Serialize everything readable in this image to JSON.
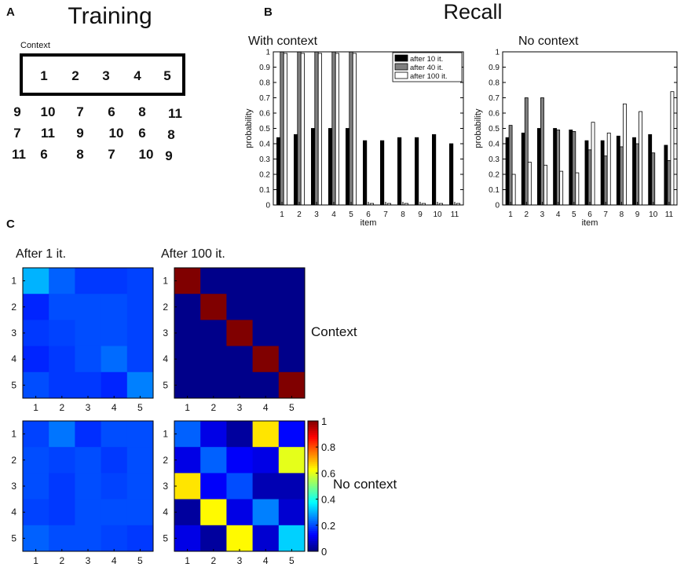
{
  "panels": {
    "a_letter": "A",
    "b_letter": "B",
    "c_letter": "C"
  },
  "training": {
    "title": "Training",
    "context_label": "Context",
    "context_items": [
      "1",
      "2",
      "3",
      "4",
      "5"
    ],
    "rows": [
      [
        "9",
        "10",
        "7",
        "6",
        "8",
        "11"
      ],
      [
        "7",
        "11",
        "9",
        "10",
        "6",
        "8"
      ],
      [
        "11",
        "6",
        "8",
        "7",
        "10",
        "9"
      ]
    ]
  },
  "recall": {
    "title": "Recall"
  },
  "heatmaps_text": {
    "after1_title": "After 1 it.",
    "after100_title": "After 100 it.",
    "context_label": "Context",
    "nocontext_label": "No context"
  },
  "colors": {
    "bar_10": "#000000",
    "bar_40": "#808080",
    "bar_100": "#ffffff"
  },
  "chart_data": [
    {
      "type": "bar",
      "title": "With context",
      "xlabel": "item",
      "ylabel": "probability",
      "ylim": [
        0,
        1
      ],
      "yticks": [
        "0",
        "0.1",
        "0.2",
        "0.3",
        "0.4",
        "0.5",
        "0.6",
        "0.7",
        "0.8",
        "0.9",
        "1"
      ],
      "categories": [
        "1",
        "2",
        "3",
        "4",
        "5",
        "6",
        "7",
        "8",
        "9",
        "10",
        "11"
      ],
      "legend": "top-right",
      "series": [
        {
          "name": "after 10 it.",
          "values": [
            0.44,
            0.46,
            0.5,
            0.5,
            0.5,
            0.42,
            0.42,
            0.44,
            0.44,
            0.46,
            0.4
          ]
        },
        {
          "name": "after 40 it.",
          "values": [
            1.0,
            1.0,
            1.0,
            1.0,
            1.0,
            0,
            0,
            0,
            0,
            0,
            0
          ]
        },
        {
          "name": "after 100 it.",
          "values": [
            0.99,
            0.99,
            0.99,
            0.99,
            0.99,
            0.01,
            0.01,
            0.01,
            0.01,
            0.01,
            0.01
          ]
        }
      ]
    },
    {
      "type": "bar",
      "title": "No context",
      "xlabel": "item",
      "ylabel": "probability",
      "ylim": [
        0,
        1
      ],
      "yticks": [
        "0",
        "0.1",
        "0.2",
        "0.3",
        "0.4",
        "0.5",
        "0.6",
        "0.7",
        "0.8",
        "0.9",
        "1"
      ],
      "categories": [
        "1",
        "2",
        "3",
        "4",
        "5",
        "6",
        "7",
        "8",
        "9",
        "10",
        "11"
      ],
      "series": [
        {
          "name": "after 10 it.",
          "values": [
            0.44,
            0.47,
            0.5,
            0.5,
            0.49,
            0.42,
            0.42,
            0.45,
            0.44,
            0.46,
            0.39
          ]
        },
        {
          "name": "after 40 it.",
          "values": [
            0.52,
            0.7,
            0.7,
            0.49,
            0.48,
            0.36,
            0.32,
            0.38,
            0.4,
            0.34,
            0.29
          ]
        },
        {
          "name": "after 100 it.",
          "values": [
            0.2,
            0.28,
            0.26,
            0.22,
            0.21,
            0.54,
            0.47,
            0.66,
            0.61,
            0.0,
            0.74
          ]
        }
      ]
    },
    {
      "type": "heatmap",
      "title": "After 1 it.",
      "row_label": "Context",
      "xticks": [
        "1",
        "2",
        "3",
        "4",
        "5"
      ],
      "yticks": [
        "1",
        "2",
        "3",
        "4",
        "5"
      ],
      "clim": [
        0,
        1
      ],
      "values": [
        [
          0.3,
          0.22,
          0.18,
          0.18,
          0.19
        ],
        [
          0.16,
          0.2,
          0.2,
          0.2,
          0.19
        ],
        [
          0.18,
          0.19,
          0.2,
          0.2,
          0.19
        ],
        [
          0.16,
          0.18,
          0.2,
          0.23,
          0.19
        ],
        [
          0.2,
          0.18,
          0.18,
          0.16,
          0.25
        ]
      ]
    },
    {
      "type": "heatmap",
      "title": "After 100 it.",
      "row_label": "Context",
      "xticks": [
        "1",
        "2",
        "3",
        "4",
        "5"
      ],
      "yticks": [
        "1",
        "2",
        "3",
        "4",
        "5"
      ],
      "clim": [
        0,
        1
      ],
      "values": [
        [
          1.0,
          0.01,
          0.01,
          0.01,
          0.01
        ],
        [
          0.01,
          1.0,
          0.01,
          0.01,
          0.01
        ],
        [
          0.01,
          0.01,
          1.0,
          0.01,
          0.01
        ],
        [
          0.01,
          0.01,
          0.01,
          1.0,
          0.01
        ],
        [
          0.01,
          0.01,
          0.01,
          0.01,
          1.0
        ]
      ]
    },
    {
      "type": "heatmap",
      "title": "After 1 it.",
      "row_label": "No context",
      "xticks": [
        "1",
        "2",
        "3",
        "4",
        "5"
      ],
      "yticks": [
        "1",
        "2",
        "3",
        "4",
        "5"
      ],
      "clim": [
        0,
        1
      ],
      "values": [
        [
          0.19,
          0.24,
          0.17,
          0.2,
          0.2
        ],
        [
          0.2,
          0.19,
          0.2,
          0.18,
          0.2
        ],
        [
          0.2,
          0.18,
          0.2,
          0.19,
          0.2
        ],
        [
          0.19,
          0.18,
          0.2,
          0.2,
          0.2
        ],
        [
          0.22,
          0.2,
          0.2,
          0.19,
          0.18
        ]
      ]
    },
    {
      "type": "heatmap",
      "title": "After 100 it.",
      "row_label": "No context",
      "xticks": [
        "1",
        "2",
        "3",
        "4",
        "5"
      ],
      "yticks": [
        "1",
        "2",
        "3",
        "4",
        "5"
      ],
      "clim": [
        0,
        1
      ],
      "values": [
        [
          0.22,
          0.1,
          0.03,
          0.65,
          0.13
        ],
        [
          0.1,
          0.22,
          0.12,
          0.1,
          0.6
        ],
        [
          0.65,
          0.12,
          0.2,
          0.05,
          0.05
        ],
        [
          0.03,
          0.63,
          0.1,
          0.25,
          0.08
        ],
        [
          0.1,
          0.03,
          0.63,
          0.08,
          0.33
        ]
      ]
    }
  ],
  "colorbar": {
    "ticks": [
      "0",
      "0.2",
      "0.4",
      "0.6",
      "0.8",
      "1"
    ],
    "values": [
      0,
      0.2,
      0.4,
      0.6,
      0.8,
      1
    ]
  }
}
